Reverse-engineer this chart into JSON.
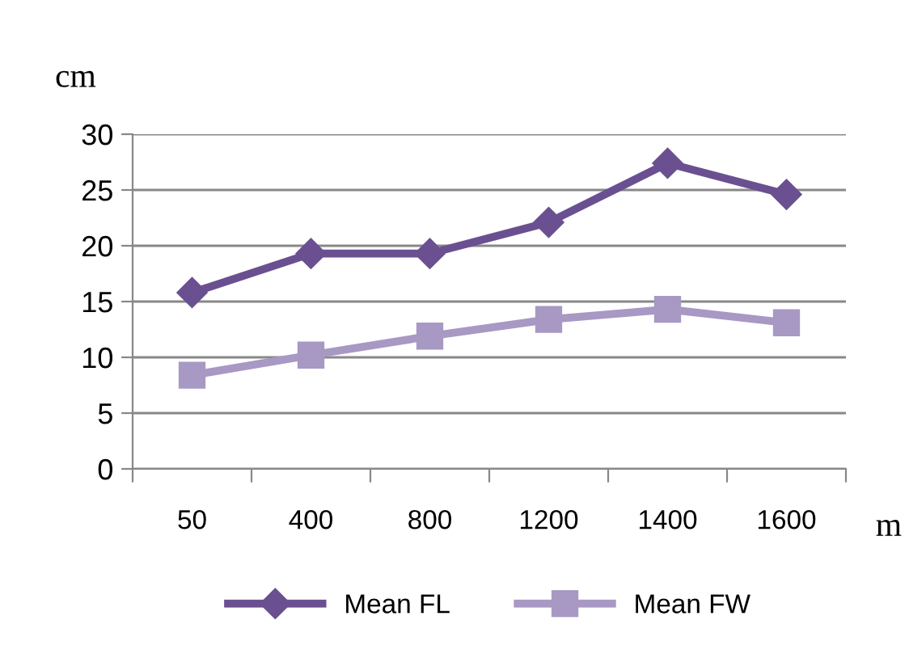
{
  "chart_data": {
    "type": "line",
    "xlabel": "m",
    "ylabel": "cm",
    "categories": [
      "50",
      "400",
      "800",
      "1200",
      "1400",
      "1600"
    ],
    "series": [
      {
        "name": "Mean FL",
        "color": "#6a5090",
        "marker": "diamond",
        "values": [
          15.8,
          19.3,
          19.3,
          22.1,
          27.4,
          24.6
        ]
      },
      {
        "name": "Mean FW",
        "color": "#a898c4",
        "marker": "square",
        "values": [
          8.4,
          10.2,
          11.9,
          13.4,
          14.3,
          13.1
        ]
      }
    ],
    "ylim": [
      0,
      30
    ],
    "yticks": [
      0,
      5,
      10,
      15,
      20,
      25,
      30
    ],
    "grid": "y",
    "legend": "bottom"
  }
}
